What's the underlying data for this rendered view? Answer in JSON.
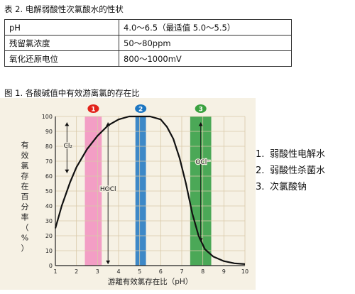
{
  "table": {
    "caption": "表 2. 电解弱酸性次氯酸水的性状",
    "rows": [
      {
        "label": "pH",
        "value": "4.0～6.5（最适值 5.0～5.5）"
      },
      {
        "label": "残留氯浓度",
        "value": "50～80ppm"
      },
      {
        "label": "氧化还原电位",
        "value": "800～1000mV"
      }
    ]
  },
  "figure": {
    "caption": "图 1. 各酸碱值中有效游离氯的存在比"
  },
  "legend": {
    "items": [
      {
        "num": "1.",
        "label": "弱酸性电解水"
      },
      {
        "num": "2.",
        "label": "弱酸性杀菌水"
      },
      {
        "num": "3.",
        "label": "次氯酸钠"
      }
    ]
  },
  "chart_data": {
    "type": "line",
    "title": "",
    "xlabel": "游離有效氯存在比（pH）",
    "ylabel": "有效氯存在百分率（%）",
    "xlim": [
      1,
      10
    ],
    "ylim": [
      0,
      100
    ],
    "xticks": [
      "1",
      "2",
      "3",
      "4",
      "5",
      "6",
      "7",
      "8",
      "9",
      "10"
    ],
    "yticks": [
      "0",
      "10",
      "20",
      "30",
      "40",
      "50",
      "60",
      "70",
      "80",
      "90",
      "100"
    ],
    "grid": true,
    "series": [
      {
        "name": "",
        "x": [
          1.0,
          1.3,
          1.7,
          2.0,
          2.5,
          3.0,
          3.5,
          4.0,
          4.5,
          5.0,
          5.5,
          6.0,
          6.3,
          6.6,
          6.9,
          7.2,
          7.5,
          7.8,
          8.1,
          8.5,
          9.0,
          9.5,
          10.0
        ],
        "values": [
          25,
          40,
          56,
          66,
          78,
          87,
          94,
          98,
          100,
          100,
          100,
          98,
          93,
          85,
          72,
          55,
          35,
          20,
          11,
          6,
          3,
          1.5,
          1
        ]
      }
    ],
    "bands": [
      {
        "label": "1",
        "from": 2.4,
        "to": 3.2,
        "color": "#f28fbf"
      },
      {
        "label": "2",
        "from": 4.8,
        "to": 5.3,
        "color": "#1c76c2"
      },
      {
        "label": "3",
        "from": 7.4,
        "to": 8.4,
        "color": "#2d9b3e"
      }
    ],
    "badge_colors": [
      "#e2231a",
      "#1c76c2",
      "#3aa13f"
    ],
    "annotations": [
      {
        "text": "Cl₂",
        "x": 1.6,
        "y": 79
      },
      {
        "text": "HOCl",
        "x": 3.5,
        "y": 50
      },
      {
        "text": "OCl⁻",
        "x": 8.0,
        "y": 68
      }
    ]
  }
}
